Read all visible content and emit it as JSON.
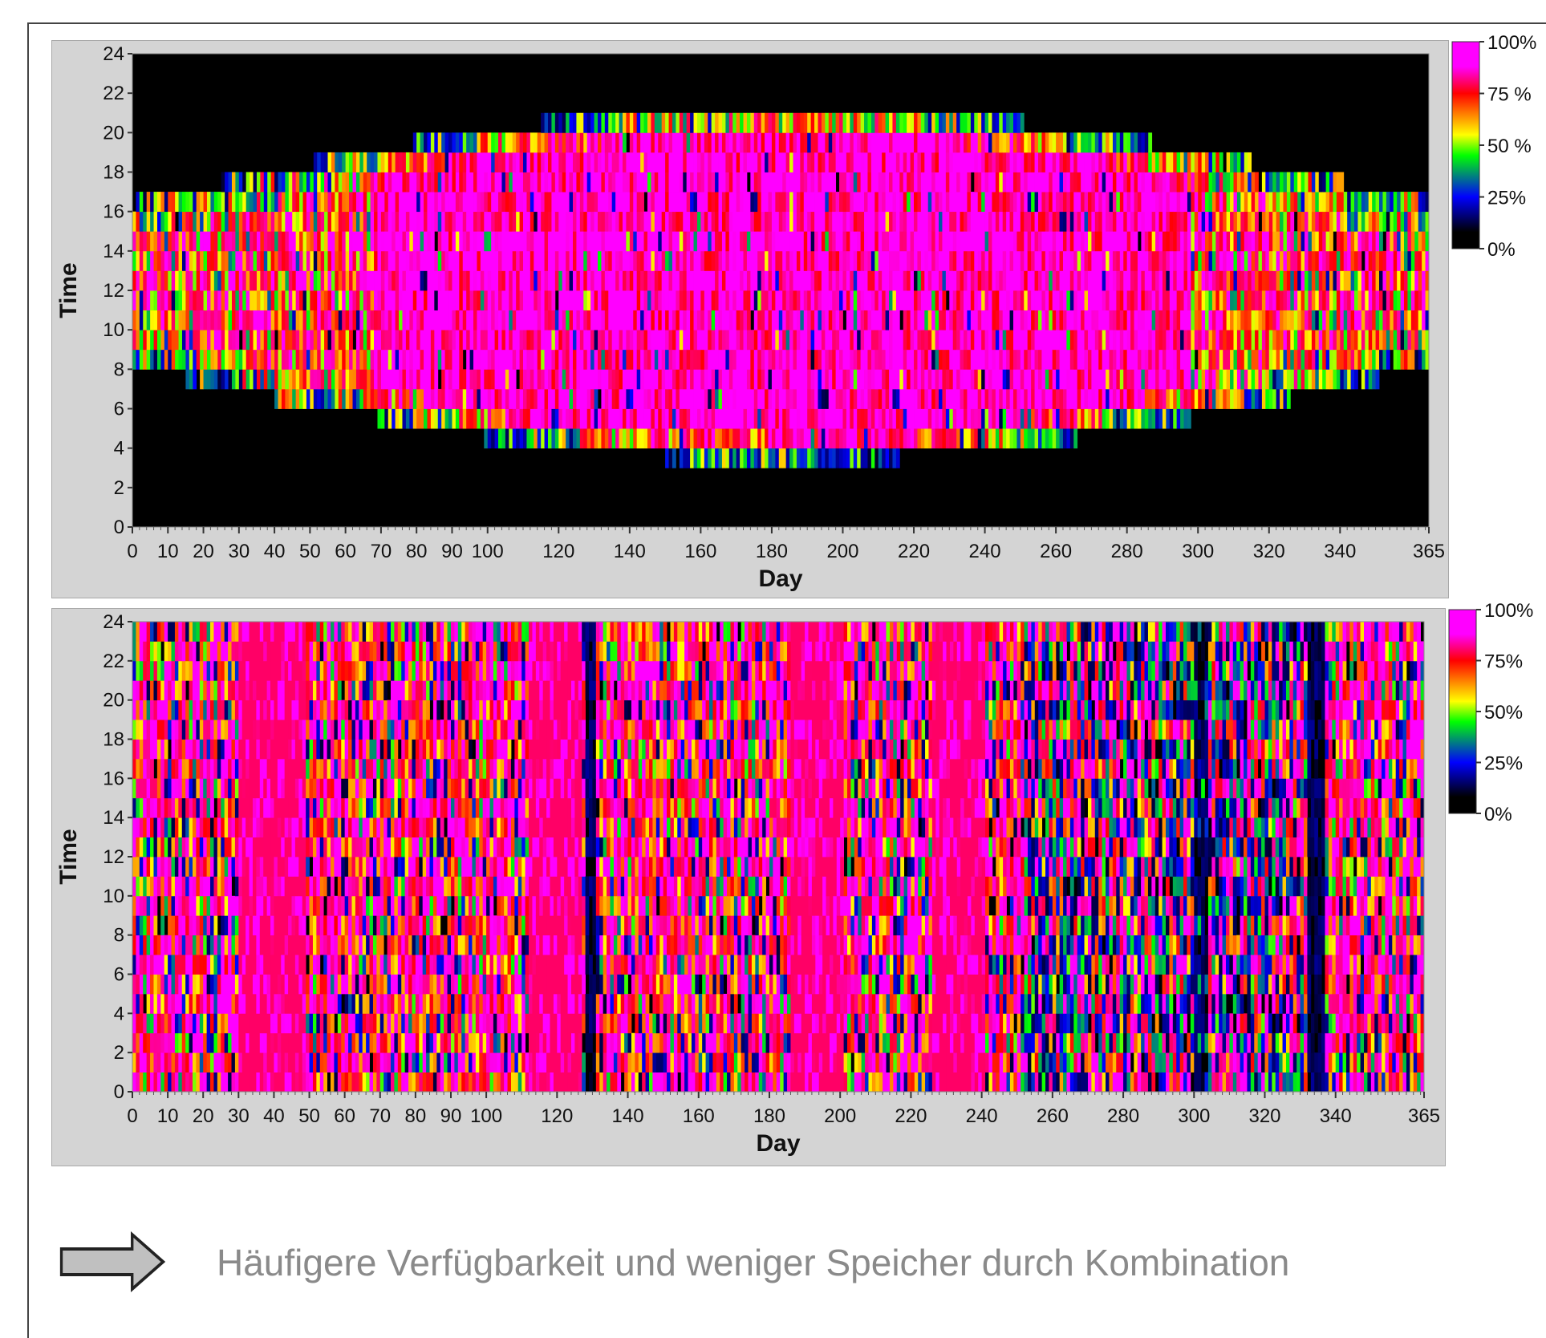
{
  "caption": "Häufigere Verfügbarkeit und weniger Speicher durch Kombination",
  "chart_data": [
    {
      "type": "heatmap",
      "xlabel": "Day",
      "ylabel": "Time",
      "xlim": [
        0,
        365
      ],
      "ylim": [
        0,
        24
      ],
      "x_ticks": [
        0,
        10,
        20,
        30,
        40,
        50,
        60,
        70,
        80,
        90,
        100,
        120,
        140,
        160,
        180,
        200,
        220,
        240,
        260,
        280,
        300,
        320,
        340,
        365
      ],
      "y_ticks": [
        0,
        2,
        4,
        6,
        8,
        10,
        12,
        14,
        16,
        18,
        20,
        22,
        24
      ],
      "colorbar": {
        "labels": [
          "100%",
          "75 %",
          "50 %",
          "25%",
          "0%"
        ],
        "values": [
          1.0,
          0.75,
          0.5,
          0.25,
          0.0
        ]
      },
      "colors": {
        "background": "#000000",
        "max": "#ff00ff"
      },
      "pattern": "daytime-availability"
    },
    {
      "type": "heatmap",
      "xlabel": "Day",
      "ylabel": "Time",
      "xlim": [
        0,
        365
      ],
      "ylim": [
        0,
        24
      ],
      "x_ticks": [
        0,
        10,
        20,
        30,
        40,
        50,
        60,
        70,
        80,
        90,
        100,
        120,
        140,
        160,
        180,
        200,
        220,
        240,
        260,
        280,
        300,
        320,
        340,
        365
      ],
      "y_ticks": [
        0,
        2,
        4,
        6,
        8,
        10,
        12,
        14,
        16,
        18,
        20,
        22,
        24
      ],
      "colorbar": {
        "labels": [
          "100%",
          "75%",
          "50%",
          "25%",
          "0%"
        ],
        "values": [
          1.0,
          0.75,
          0.5,
          0.25,
          0.0
        ]
      },
      "colors": {
        "background": "#000000",
        "max": "#ff00ff"
      },
      "pattern": "combined-availability"
    }
  ]
}
